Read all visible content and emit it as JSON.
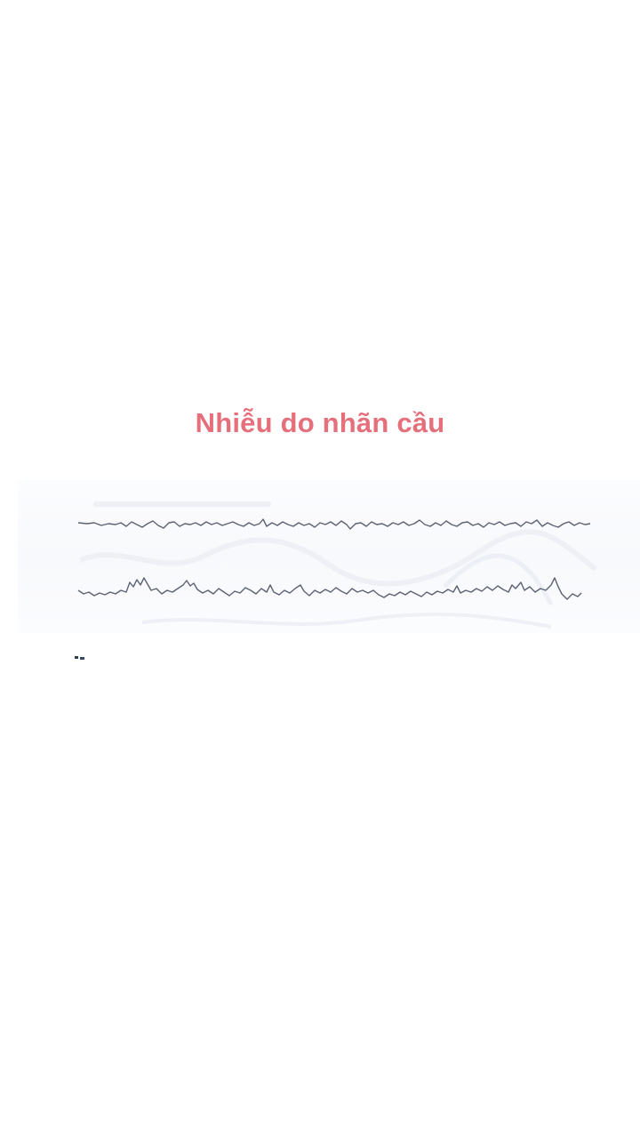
{
  "header": {
    "title": "Nhiễu do nhãn cầu"
  },
  "figure": {
    "icon": "eeg-trace-image",
    "trace_color": "#5c6272",
    "title_color": "#e5707c"
  }
}
